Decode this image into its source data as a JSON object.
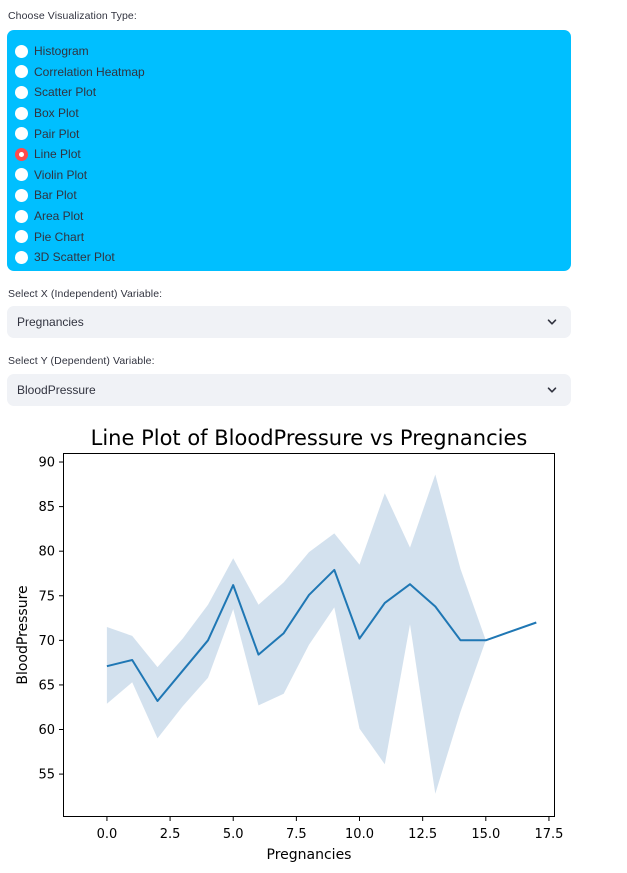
{
  "viz_type": {
    "label": "Choose Visualization Type:",
    "options": [
      "Histogram",
      "Correlation Heatmap",
      "Scatter Plot",
      "Box Plot",
      "Pair Plot",
      "Line Plot",
      "Violin Plot",
      "Bar Plot",
      "Area Plot",
      "Pie Chart",
      "3D Scatter Plot"
    ],
    "selected_index": 5,
    "panel_color": "#00bfff",
    "selected_color": "#ff4b4b"
  },
  "x_select": {
    "label": "Select X (Independent) Variable:",
    "value": "Pregnancies",
    "icon": "chevron-down-icon"
  },
  "y_select": {
    "label": "Select Y (Dependent) Variable:",
    "value": "BloodPressure",
    "icon": "chevron-down-icon"
  },
  "chart_data": {
    "type": "line",
    "title": "Line Plot of BloodPressure vs Pregnancies",
    "xlabel": "Pregnancies",
    "ylabel": "BloodPressure",
    "xlim": [
      -1.7,
      17.7
    ],
    "ylim": [
      50.3,
      90.9
    ],
    "xticks": [
      0.0,
      2.5,
      5.0,
      7.5,
      10.0,
      12.5,
      15.0,
      17.5
    ],
    "xtick_labels": [
      "0.0",
      "2.5",
      "5.0",
      "7.5",
      "10.0",
      "12.5",
      "15.0",
      "17.5"
    ],
    "yticks": [
      55,
      60,
      65,
      70,
      75,
      80,
      85,
      90
    ],
    "ytick_labels": [
      "55",
      "60",
      "65",
      "70",
      "75",
      "80",
      "85",
      "90"
    ],
    "grid": false,
    "series": [
      {
        "x": [
          0,
          1,
          2,
          3,
          4,
          5,
          6,
          7,
          8,
          9,
          10,
          11,
          12,
          13,
          14,
          15,
          17
        ],
        "y": [
          67.1,
          67.8,
          63.2,
          66.6,
          70.0,
          76.2,
          68.4,
          70.8,
          75.1,
          77.9,
          70.2,
          74.2,
          76.3,
          73.8,
          70.0,
          70.0,
          72.0
        ],
        "ci_lower": [
          62.9,
          65.3,
          59.0,
          62.6,
          65.8,
          73.5,
          62.7,
          64.0,
          69.5,
          73.7,
          60.1,
          56.1,
          71.8,
          52.8,
          62.0,
          70.0,
          72.0
        ],
        "ci_upper": [
          71.5,
          70.5,
          67.0,
          70.2,
          74.0,
          79.2,
          74.0,
          76.5,
          79.9,
          82.0,
          78.5,
          86.5,
          80.4,
          88.6,
          78.0,
          70.0,
          72.0
        ],
        "color": "#1f77b4",
        "band_color": "#aec9e0"
      }
    ]
  }
}
